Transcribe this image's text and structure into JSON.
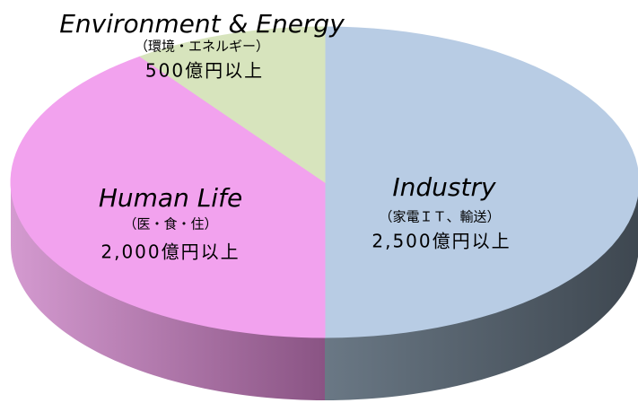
{
  "chart_data": {
    "type": "pie",
    "categories": [
      "Industry",
      "Human Life",
      "Environment & Energy"
    ],
    "sublabels": [
      "（家電ＩＴ、輸送）",
      "（医・食・住）",
      "（環境・エネルギー）"
    ],
    "values": [
      2500,
      2000,
      500
    ],
    "value_labels": [
      "2,500億円以上",
      "2,000億円以上",
      "500億円以上"
    ],
    "colors": [
      "#b8cce4",
      "#f2a2ee",
      "#d7e4bd"
    ],
    "side_colors": [
      "#4a5560",
      "#a0609a",
      "#a0b080"
    ]
  }
}
